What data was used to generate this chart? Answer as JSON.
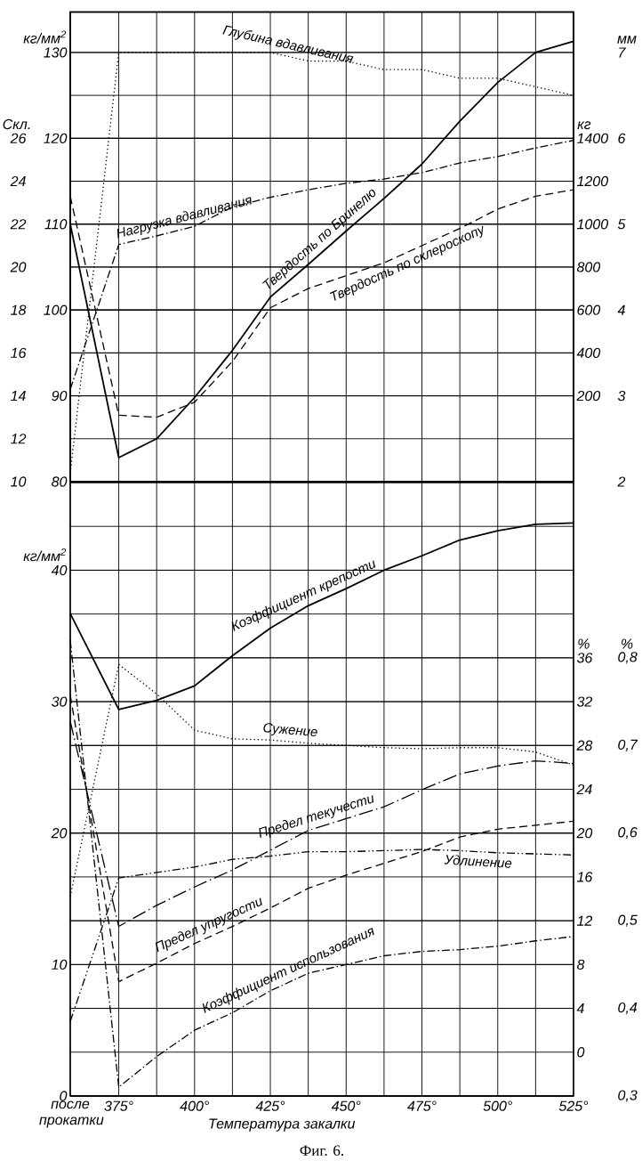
{
  "chart_data": [
    {
      "type": "line",
      "grid": true,
      "tick_labels": "y",
      "xlim": [
        359,
        525
      ],
      "xticks": [
        {
          "value": 359,
          "label": null
        },
        {
          "value": 375,
          "label": null
        },
        {
          "value": 387.5,
          "label": null
        },
        {
          "value": 400,
          "label": null
        },
        {
          "value": 412.5,
          "label": null
        },
        {
          "value": 425,
          "label": null
        },
        {
          "value": 437.5,
          "label": null
        },
        {
          "value": 450,
          "label": null
        },
        {
          "value": 462.5,
          "label": null
        },
        {
          "value": 475,
          "label": null
        },
        {
          "value": 487.5,
          "label": null
        },
        {
          "value": 500,
          "label": null
        },
        {
          "value": 512.5,
          "label": null
        },
        {
          "value": 525,
          "label": null
        }
      ],
      "ylim": [
        80,
        134.7
      ],
      "yticks": [
        80,
        90,
        100,
        110,
        120,
        130
      ],
      "ylabel": "кг/мм$^{2}$",
      "y2lim": [
        10,
        31.88
      ],
      "y2ticks": [
        10,
        12,
        14,
        16,
        18,
        20,
        22,
        24,
        26,
        {
          "value": 28,
          "label": null
        },
        {
          "value": 30,
          "label": null
        }
      ],
      "y2label": "Скл.",
      "y3lim": [
        -200,
        1988
      ],
      "y3ticks": [
        200,
        400,
        600,
        800,
        1000,
        1200,
        1400
      ],
      "y3label": "кг",
      "x": [
        359,
        375,
        387.5,
        400,
        412.5,
        425,
        437.5,
        450,
        462.5,
        475,
        487.5,
        500,
        512.5,
        525
      ],
      "series": [
        {
          "name": "Нагрузка вдавливания",
          "axis": "y3",
          "color": "#000000",
          "line_style": "dashdot",
          "values": [
            230,
            905,
            945,
            990,
            1080,
            1125,
            1160,
            1190,
            1210,
            1240,
            1285,
            1315,
            1355,
            1390
          ]
        },
        {
          "name": "Твердость по Бринелю",
          "color": "#000000",
          "line_style": "solid",
          "values": [
            110,
            82.8,
            85,
            89.8,
            95.3,
            101.5,
            105.3,
            109.2,
            113,
            117,
            122,
            126.5,
            130,
            131.3
          ]
        },
        {
          "name": "Твердость по склероскопу",
          "axis": "y2",
          "color": "#000000",
          "line_style": "dashed",
          "values": [
            23.3,
            13.1,
            13.0,
            13.7,
            15.6,
            18.1,
            19.0,
            19.6,
            20.2,
            21.0,
            21.8,
            22.7,
            23.3,
            23.6
          ]
        }
      ]
    },
    {
      "type": "line",
      "tick_labels": "y",
      "xlim": [
        359,
        525
      ],
      "ylim": [
        2,
        7.47
      ],
      "yticks": [
        2,
        3,
        4,
        5,
        6,
        7
      ],
      "ylabel": "мм",
      "x": [
        359,
        375,
        387.5,
        400,
        412.5,
        425,
        437.5,
        450,
        462.5,
        475,
        487.5,
        500,
        512.5,
        525
      ],
      "series": [
        {
          "name": "Глубина вдавливания",
          "color": "#000000",
          "line_style": "dotted",
          "values": [
            2.1,
            7.0,
            7.0,
            7.0,
            7.0,
            7.0,
            6.9,
            6.9,
            6.8,
            6.8,
            6.7,
            6.7,
            6.6,
            6.5
          ]
        }
      ]
    },
    {
      "type": "line",
      "grid": true,
      "xlim": [
        359,
        525
      ],
      "xlabel": "Температура закалки",
      "xticks": [
        {
          "value": 359,
          "label": "после прокатки"
        },
        {
          "value": 375,
          "label": "375°"
        },
        {
          "value": 387.5,
          "label": null
        },
        {
          "value": 400,
          "label": "400°"
        },
        {
          "value": 412.5,
          "label": null
        },
        {
          "value": 425,
          "label": "425°"
        },
        {
          "value": 437.5,
          "label": null
        },
        {
          "value": 450,
          "label": "450°"
        },
        {
          "value": 462.5,
          "label": null
        },
        {
          "value": 475,
          "label": "475°"
        },
        {
          "value": 487.5,
          "label": null
        },
        {
          "value": 500,
          "label": "500°"
        },
        {
          "value": 512.5,
          "label": null
        },
        {
          "value": 525,
          "label": "525°"
        }
      ],
      "ylim": [
        0,
        46.67
      ],
      "yticks": [
        0,
        10,
        20,
        30,
        40
      ],
      "ylabel": "кг/мм$^{2}$",
      "y2lim": [
        -4,
        52
      ],
      "y2ticks": [
        {
          "value": -4,
          "label": null
        },
        0,
        4,
        8,
        12,
        16,
        20,
        24,
        28,
        32,
        36,
        {
          "value": 40,
          "label": null
        },
        {
          "value": 44,
          "label": null
        },
        {
          "value": 48,
          "label": null
        }
      ],
      "y2label": "%",
      "y3lim": [
        0.3,
        1.0
      ],
      "y3ticks": [
        {
          "value": 0.3,
          "label": "0,3"
        },
        {
          "value": 0.4,
          "label": "0,4"
        },
        {
          "value": 0.5,
          "label": "0,5"
        },
        {
          "value": 0.6,
          "label": "0,6"
        },
        {
          "value": 0.7,
          "label": "0,7"
        },
        {
          "value": 0.8,
          "label": "0,8"
        }
      ],
      "y3label": "%",
      "annotations": [
        "Фиг. 6."
      ],
      "x": [
        359,
        375,
        387.5,
        400,
        412.5,
        425,
        437.5,
        450,
        462.5,
        475,
        487.5,
        500,
        512.5,
        525
      ],
      "series": [
        {
          "name": "Коэффициент крепости",
          "color": "#000000",
          "line_style": "solid",
          "values": [
            36.7,
            29.4,
            30.1,
            31.2,
            33.5,
            35.6,
            37.3,
            38.6,
            40,
            41.1,
            42.3,
            43,
            43.5,
            43.6
          ]
        },
        {
          "name": "Сужение",
          "axis": "y2",
          "color": "#000000",
          "line_style": "dotted",
          "values": [
            14.2,
            35.4,
            32.7,
            29.4,
            28.6,
            28.5,
            28.2,
            28.0,
            27.8,
            27.7,
            27.8,
            27.8,
            27.4,
            26.2
          ]
        },
        {
          "name": "Предел текучести",
          "color": "#000000",
          "line_style": "longdashdot",
          "values": [
            28.5,
            12.9,
            14.5,
            15.9,
            17.2,
            18.7,
            20.2,
            21.1,
            22.0,
            23.3,
            24.5,
            25.1,
            25.5,
            25.3
          ]
        },
        {
          "name": "Удлинение",
          "axis": "y2",
          "color": "#000000",
          "line_style": "dashdotdot",
          "values": [
            2.8,
            15.9,
            16.4,
            16.9,
            17.6,
            17.9,
            18.3,
            18.3,
            18.4,
            18.5,
            18.4,
            18.2,
            18.1,
            18.0
          ]
        },
        {
          "name": "Предел упругости",
          "color": "#000000",
          "line_style": "dashed",
          "values": [
            30.5,
            8.7,
            10.1,
            11.6,
            12.9,
            14.3,
            15.8,
            16.8,
            17.7,
            18.6,
            19.7,
            20.3,
            20.6,
            20.9
          ]
        },
        {
          "name": "Коэффициент использования",
          "axis": "y3",
          "color": "#000000",
          "line_style": "dashdot",
          "values": [
            0.82,
            0.31,
            0.345,
            0.375,
            0.395,
            0.42,
            0.44,
            0.45,
            0.46,
            0.465,
            0.467,
            0.471,
            0.477,
            0.482
          ]
        }
      ]
    }
  ]
}
